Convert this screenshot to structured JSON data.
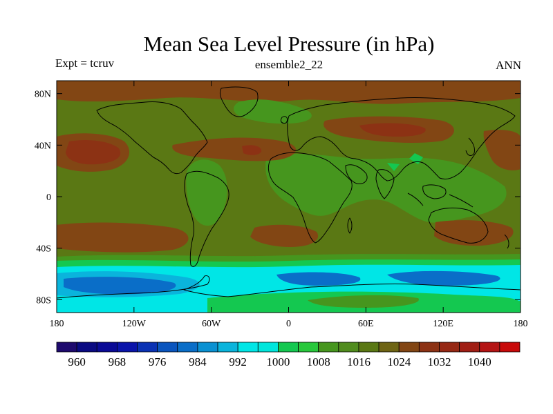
{
  "title": "Mean Sea Level Pressure (in hPa)",
  "left_label": "Expt = tcruv",
  "center_label": "ensemble2_22",
  "right_label": "ANN",
  "map": {
    "lon_ticks": [
      "180",
      "120W",
      "60W",
      "0",
      "60E",
      "120E",
      "180"
    ],
    "lat_ticks": [
      "80N",
      "40N",
      "0",
      "40S",
      "80S"
    ]
  },
  "colorbar": {
    "colors": [
      "#1e0a6e",
      "#0a0a82",
      "#0a0a96",
      "#0a14aa",
      "#0a32b4",
      "#0a55be",
      "#0a6ec8",
      "#0a91d2",
      "#0ab4dc",
      "#00e6e6",
      "#00e6dc",
      "#14c850",
      "#28c83c",
      "#46961e",
      "#508c1e",
      "#5a7814",
      "#6e6414",
      "#824614",
      "#8c3214",
      "#962814",
      "#a01e14",
      "#b41414",
      "#c80a0a"
    ],
    "labels": [
      "960",
      "968",
      "976",
      "984",
      "992",
      "1000",
      "1008",
      "1016",
      "1024",
      "1032",
      "1040"
    ]
  },
  "colors": {
    "background_level": "#5a7814",
    "low_subtropics": "#46961e",
    "high_subtropics": "#824614",
    "strong_high": "#8c3214",
    "ocean_trough_edge": "#14c850",
    "ocean_trough_mid": "#00e6e6",
    "ocean_trough_core": "#0a6ec8",
    "antarctic_interior": "#0ab4dc"
  }
}
